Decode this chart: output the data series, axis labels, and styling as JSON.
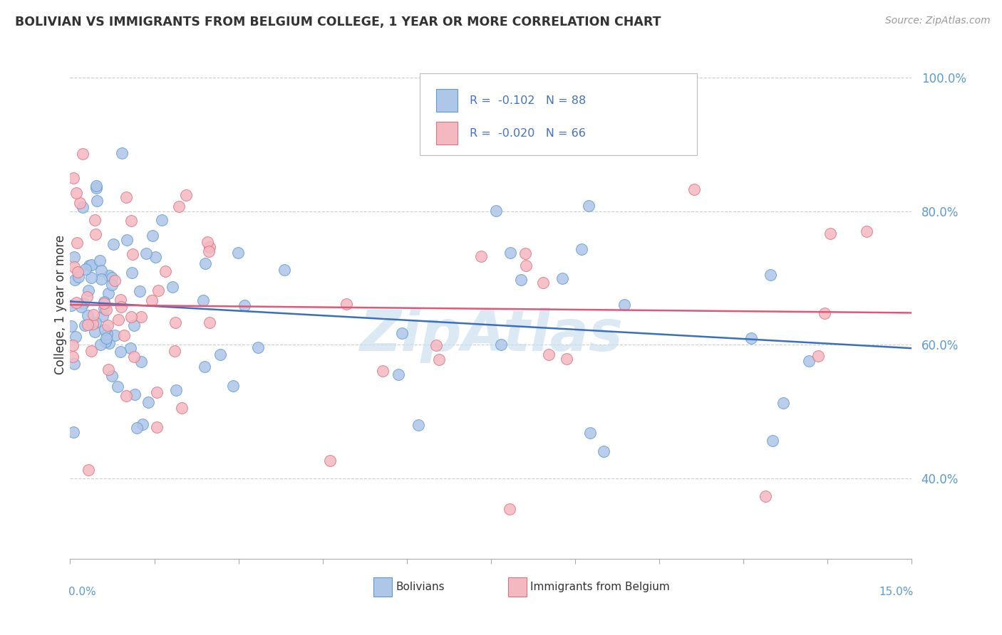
{
  "title": "BOLIVIAN VS IMMIGRANTS FROM BELGIUM COLLEGE, 1 YEAR OR MORE CORRELATION CHART",
  "source_text": "Source: ZipAtlas.com",
  "ylabel": "College, 1 year or more",
  "xmin": 0.0,
  "xmax": 15.0,
  "ymin": 28.0,
  "ymax": 104.0,
  "yticks": [
    40.0,
    60.0,
    80.0,
    100.0
  ],
  "ytick_labels": [
    "40.0%",
    "60.0%",
    "80.0%",
    "100.0%"
  ],
  "legend_r1": "R = -0.102",
  "legend_n1": "N = 88",
  "legend_r2": "R = -0.020",
  "legend_n2": "N = 66",
  "legend_label1": "Bolivians",
  "legend_label2": "Immigrants from Belgium",
  "color_blue": "#aec6e8",
  "color_blue_edge": "#5b9bd5",
  "color_blue_line": "#3b6fbe",
  "color_pink": "#f4b8c1",
  "color_pink_edge": "#e07080",
  "color_pink_line": "#e05878",
  "color_legend_text": "#4472c4",
  "color_ytick": "#5b9bd5",
  "watermark_color": "#cce0f0",
  "blue_trend_y0": 66.5,
  "blue_trend_y1": 59.5,
  "pink_trend_y0": 66.0,
  "pink_trend_y1": 64.8
}
